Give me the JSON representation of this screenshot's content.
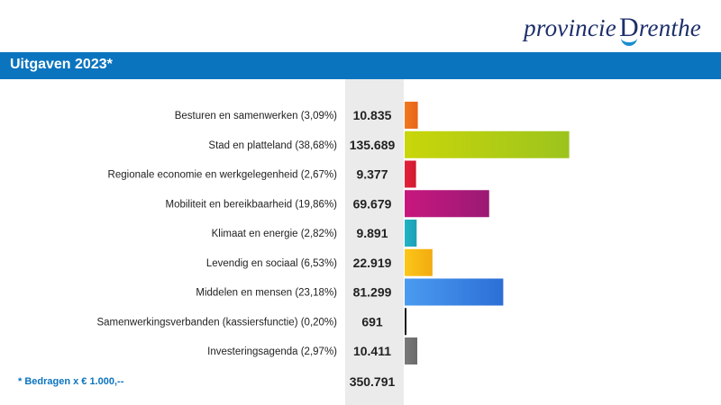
{
  "logo": {
    "text_prefix": "provincie",
    "text_initial": "D",
    "text_rest": "renthe"
  },
  "header": {
    "title": "Uitgaven 2023*",
    "bar_color": "#0b74bf"
  },
  "footnote": "* Bedragen x € 1.000,--",
  "total": "350.791",
  "chart_data": {
    "type": "bar",
    "orientation": "horizontal",
    "title": "Uitgaven 2023*",
    "categories": [
      "Besturen en samenwerken (3,09%)",
      "Stad en platteland (38,68%)",
      "Regionale economie en werkgelegenheid (2,67%)",
      "Mobiliteit en bereikbaarheid (19,86%)",
      "Klimaat en energie (2,82%)",
      "Levendig en sociaal (6,53%)",
      "Middelen en mensen (23,18%)",
      "Samenwerkingsverbanden (kassiersfunctie) (0,20%)",
      "Investeringsagenda (2,97%)"
    ],
    "values": [
      10835,
      135689,
      9377,
      69679,
      9891,
      22919,
      81299,
      691,
      10411
    ],
    "value_labels": [
      "10.835",
      "135.689",
      "9.377",
      "69.679",
      "9.891",
      "22.919",
      "81.299",
      "691",
      "10.411"
    ],
    "colors": [
      [
        "#f07a1f",
        "#e8641a"
      ],
      [
        "#c9d60a",
        "#9cc41d"
      ],
      [
        "#e5203a",
        "#cf1930"
      ],
      [
        "#c8177f",
        "#9a1a73"
      ],
      [
        "#1fb6c6",
        "#1e9eb5"
      ],
      [
        "#fcc718",
        "#f2ab10"
      ],
      [
        "#4a9bf0",
        "#2c6fd6"
      ],
      [
        "#111111",
        "#111111"
      ],
      [
        "#7a7a7a",
        "#6a6a6a"
      ]
    ],
    "xlim": [
      0,
      136000
    ],
    "grid": false,
    "legend": "none"
  }
}
